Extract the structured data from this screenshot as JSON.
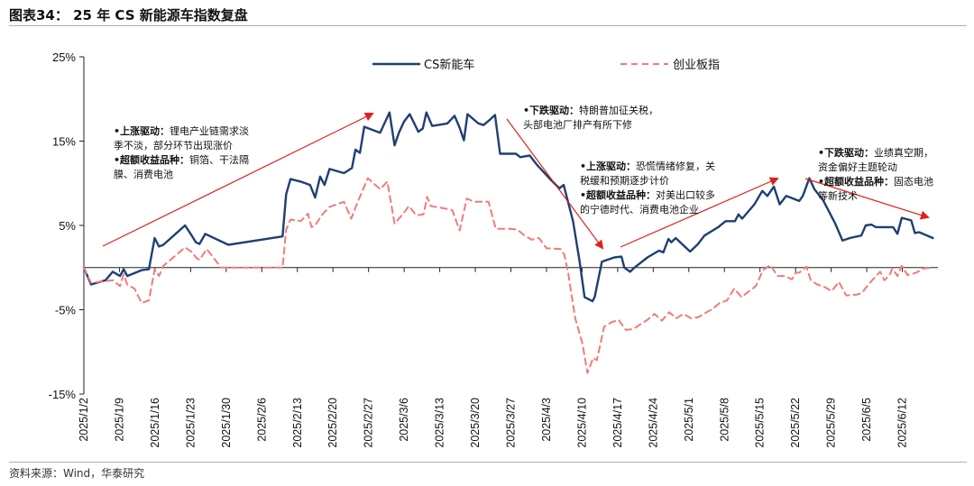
{
  "header": {
    "title": "图表34： 25 年 CS 新能源车指数复盘",
    "source": "资料来源：Wind，华泰研究"
  },
  "chart_data": {
    "type": "line",
    "ylim": [
      -15,
      25
    ],
    "yticks": [
      25,
      15,
      5,
      -5,
      -15
    ],
    "ytick_labels": [
      "25%",
      "15%",
      "5%",
      "-5%",
      "-15%"
    ],
    "xtick_labels": [
      "2025/1/2",
      "2025/1/9",
      "2025/1/16",
      "2025/1/23",
      "2025/1/30",
      "2025/2/6",
      "2025/2/13",
      "2025/2/20",
      "2025/2/27",
      "2025/3/6",
      "2025/3/13",
      "2025/3/20",
      "2025/3/27",
      "2025/4/3",
      "2025/4/10",
      "2025/4/17",
      "2025/4/24",
      "2025/5/1",
      "2025/5/8",
      "2025/5/15",
      "2025/5/22",
      "2025/5/29",
      "2025/6/5",
      "2025/6/12"
    ],
    "legend": [
      "CS新能车",
      "创业板指"
    ],
    "series": [
      {
        "name": "CS新能车",
        "color": "#1f3f74",
        "style": "solid",
        "points": [
          [
            0,
            0
          ],
          [
            1,
            -2
          ],
          [
            3,
            -1.5
          ],
          [
            4,
            -0.5
          ],
          [
            5,
            -1
          ],
          [
            5.5,
            -0.2
          ],
          [
            6,
            -1
          ],
          [
            8,
            -0.3
          ],
          [
            9,
            -0.2
          ],
          [
            9.8,
            3.5
          ],
          [
            10.4,
            2.5
          ],
          [
            11,
            2.7
          ],
          [
            14,
            5
          ],
          [
            15,
            3.7
          ],
          [
            15.5,
            3
          ],
          [
            16,
            2.8
          ],
          [
            16.8,
            4
          ],
          [
            20,
            2.7
          ],
          [
            27.5,
            3.7
          ],
          [
            28,
            8.7
          ],
          [
            28.6,
            10.5
          ],
          [
            30,
            10.2
          ],
          [
            31.3,
            9.8
          ],
          [
            32,
            8.3
          ],
          [
            32.7,
            10.8
          ],
          [
            33.3,
            9.8
          ],
          [
            34,
            11.7
          ],
          [
            36,
            11.2
          ],
          [
            37.1,
            11.8
          ],
          [
            37.6,
            14
          ],
          [
            38.2,
            13.6
          ],
          [
            38.8,
            16.7
          ],
          [
            41,
            16
          ],
          [
            42.3,
            18.4
          ],
          [
            43,
            14.5
          ],
          [
            43.6,
            16
          ],
          [
            44.3,
            17.3
          ],
          [
            45.1,
            18.2
          ],
          [
            46.3,
            16.1
          ],
          [
            46.9,
            16.5
          ],
          [
            47.4,
            18.4
          ],
          [
            48.2,
            16.8
          ],
          [
            50.3,
            17.1
          ],
          [
            51.3,
            18
          ],
          [
            52,
            16.6
          ],
          [
            52.6,
            15.1
          ],
          [
            53.1,
            18.2
          ],
          [
            54.6,
            17.1
          ],
          [
            55.3,
            16.9
          ],
          [
            56,
            17.4
          ],
          [
            56.9,
            18.1
          ],
          [
            57.6,
            13.5
          ],
          [
            59.8,
            13.5
          ],
          [
            60.4,
            13.1
          ],
          [
            61.7,
            13.3
          ],
          [
            62.7,
            12.2
          ],
          [
            64.4,
            10.6
          ],
          [
            65.8,
            9.4
          ],
          [
            66.4,
            9.8
          ],
          [
            67.7,
            5.5
          ],
          [
            68.6,
            0.8
          ],
          [
            69.3,
            -3.5
          ],
          [
            70.4,
            -4
          ],
          [
            70.7,
            -3.5
          ],
          [
            71.7,
            0.7
          ],
          [
            73.4,
            1.2
          ],
          [
            74.4,
            1.3
          ],
          [
            74.8,
            0
          ],
          [
            75.6,
            -0.5
          ],
          [
            76.2,
            0
          ],
          [
            78,
            1.2
          ],
          [
            79.6,
            2
          ],
          [
            80.2,
            1.8
          ],
          [
            80.9,
            3.4
          ],
          [
            81.3,
            3
          ],
          [
            81.9,
            3.5
          ],
          [
            83.9,
            1.9
          ],
          [
            85,
            2.8
          ],
          [
            85.9,
            3.8
          ],
          [
            87.8,
            4.8
          ],
          [
            88.8,
            5.5
          ],
          [
            90.1,
            5.5
          ],
          [
            90.6,
            6.3
          ],
          [
            91.1,
            5.8
          ],
          [
            92.8,
            7.5
          ],
          [
            93.9,
            9.1
          ],
          [
            94.6,
            8.5
          ],
          [
            95.5,
            9.6
          ],
          [
            96.3,
            7.5
          ],
          [
            97.2,
            8.5
          ],
          [
            99,
            7.9
          ],
          [
            99.5,
            8.5
          ],
          [
            100.4,
            10.6
          ],
          [
            101.1,
            9.3
          ],
          [
            102.3,
            8
          ],
          [
            104,
            5.2
          ],
          [
            105,
            3.2
          ],
          [
            106,
            3.5
          ],
          [
            107.6,
            3.8
          ],
          [
            108.2,
            5
          ],
          [
            109,
            5.1
          ],
          [
            109.6,
            4.8
          ],
          [
            112,
            4.8
          ],
          [
            112.6,
            4
          ],
          [
            113.2,
            5.9
          ],
          [
            114.5,
            5.6
          ],
          [
            115,
            4.1
          ],
          [
            115.6,
            4.2
          ],
          [
            117.5,
            3.5
          ]
        ]
      },
      {
        "name": "创业板指",
        "color": "#f07b7b",
        "style": "dashed",
        "points": [
          [
            0,
            0
          ],
          [
            1,
            -1.8
          ],
          [
            4,
            -1.5
          ],
          [
            5,
            -2.2
          ],
          [
            5.5,
            -0.8
          ],
          [
            6,
            -2
          ],
          [
            7,
            -2.5
          ],
          [
            8,
            -4.2
          ],
          [
            9,
            -3.9
          ],
          [
            9.8,
            -0.2
          ],
          [
            10.4,
            -1
          ],
          [
            11,
            0.2
          ],
          [
            14,
            2.4
          ],
          [
            15,
            1.8
          ],
          [
            15.5,
            1.2
          ],
          [
            16,
            0.9
          ],
          [
            17,
            2.2
          ],
          [
            19,
            0
          ],
          [
            27.5,
            0
          ],
          [
            28,
            4.5
          ],
          [
            28.6,
            5.7
          ],
          [
            30,
            5.5
          ],
          [
            31,
            6.4
          ],
          [
            31.5,
            4.8
          ],
          [
            32,
            5
          ],
          [
            33,
            6.3
          ],
          [
            34,
            7.2
          ],
          [
            36,
            7.8
          ],
          [
            37,
            5.8
          ],
          [
            38,
            8
          ],
          [
            39.3,
            10.6
          ],
          [
            41,
            9.3
          ],
          [
            42,
            10.2
          ],
          [
            43,
            5.2
          ],
          [
            44,
            6.2
          ],
          [
            45,
            7.3
          ],
          [
            46,
            6.2
          ],
          [
            47,
            6.3
          ],
          [
            47.5,
            8.4
          ],
          [
            48,
            7.3
          ],
          [
            50,
            7
          ],
          [
            51,
            6.8
          ],
          [
            52,
            4.4
          ],
          [
            53,
            8.2
          ],
          [
            54,
            7.8
          ],
          [
            55,
            7.8
          ],
          [
            56,
            7.8
          ],
          [
            57,
            4.6
          ],
          [
            59,
            4.6
          ],
          [
            60,
            4.5
          ],
          [
            61,
            3.8
          ],
          [
            62,
            3.3
          ],
          [
            63,
            3.5
          ],
          [
            64,
            2.3
          ],
          [
            66,
            2.2
          ],
          [
            66.5,
            1.5
          ],
          [
            67,
            -0.5
          ],
          [
            68,
            -6
          ],
          [
            69,
            -9
          ],
          [
            69.7,
            -12.5
          ],
          [
            70.5,
            -10.7
          ],
          [
            71,
            -11
          ],
          [
            72,
            -7
          ],
          [
            73,
            -6.5
          ],
          [
            74,
            -6.2
          ],
          [
            75,
            -7.4
          ],
          [
            76,
            -7.3
          ],
          [
            78,
            -6.2
          ],
          [
            79,
            -5.5
          ],
          [
            80,
            -6.3
          ],
          [
            81,
            -5.3
          ],
          [
            82,
            -6
          ],
          [
            83,
            -5.5
          ],
          [
            84,
            -6
          ],
          [
            85,
            -5.9
          ],
          [
            86,
            -5.4
          ],
          [
            87,
            -4.9
          ],
          [
            88,
            -4.2
          ],
          [
            89,
            -3.9
          ],
          [
            90,
            -2.5
          ],
          [
            91,
            -3.5
          ],
          [
            93,
            -2.2
          ],
          [
            94,
            -0.3
          ],
          [
            95,
            0.3
          ],
          [
            96,
            -1
          ],
          [
            97,
            -1
          ],
          [
            98,
            -1.4
          ],
          [
            98.5,
            -0.6
          ],
          [
            99,
            -0.6
          ],
          [
            100,
            0.1
          ],
          [
            100.6,
            -1.5
          ],
          [
            101.5,
            -2
          ],
          [
            102.5,
            -2.3
          ],
          [
            103.5,
            -2.8
          ],
          [
            104.5,
            -1.7
          ],
          [
            105.5,
            -3.3
          ],
          [
            107,
            -3.2
          ],
          [
            107.7,
            -3
          ],
          [
            108.3,
            -2.3
          ],
          [
            109.1,
            -1.5
          ],
          [
            110.2,
            -0.5
          ],
          [
            110.8,
            -1.5
          ],
          [
            111.5,
            -0.9
          ],
          [
            111.9,
            -0.1
          ],
          [
            112.6,
            -1
          ],
          [
            113.2,
            0.2
          ],
          [
            114,
            -0.9
          ],
          [
            115.2,
            -0.6
          ],
          [
            116.2,
            -0.1
          ],
          [
            117.5,
            0
          ]
        ]
      }
    ],
    "annotations": [
      {
        "lines": [
          [
            "•上涨驱动：",
            "锂电产业链需求淡"
          ],
          [
            "",
            "季不淡，部分环节出现涨价"
          ],
          [
            "•超额收益品种：",
            "铜箔、干法隔"
          ],
          [
            "",
            "膜、消费电池"
          ]
        ]
      },
      {
        "lines": [
          [
            "•下跌驱动：",
            "特朗普加征关税，"
          ],
          [
            "",
            "头部电池厂排产有所下修"
          ]
        ]
      },
      {
        "lines": [
          [
            "•上涨驱动：",
            "恐慌情绪修复，关"
          ],
          [
            "",
            "税缓和预期逐步计价"
          ],
          [
            "•超额收益品种：",
            "对美出口较多"
          ],
          [
            "",
            "的宁德时代、消费电池企业"
          ]
        ]
      },
      {
        "lines": [
          [
            "•下跌驱动：",
            "业绩真空期，"
          ],
          [
            "",
            "资金偏好主题轮动"
          ],
          [
            "•超额收益品种：",
            "固态电池"
          ],
          [
            "",
            "等新技术"
          ]
        ]
      }
    ]
  }
}
